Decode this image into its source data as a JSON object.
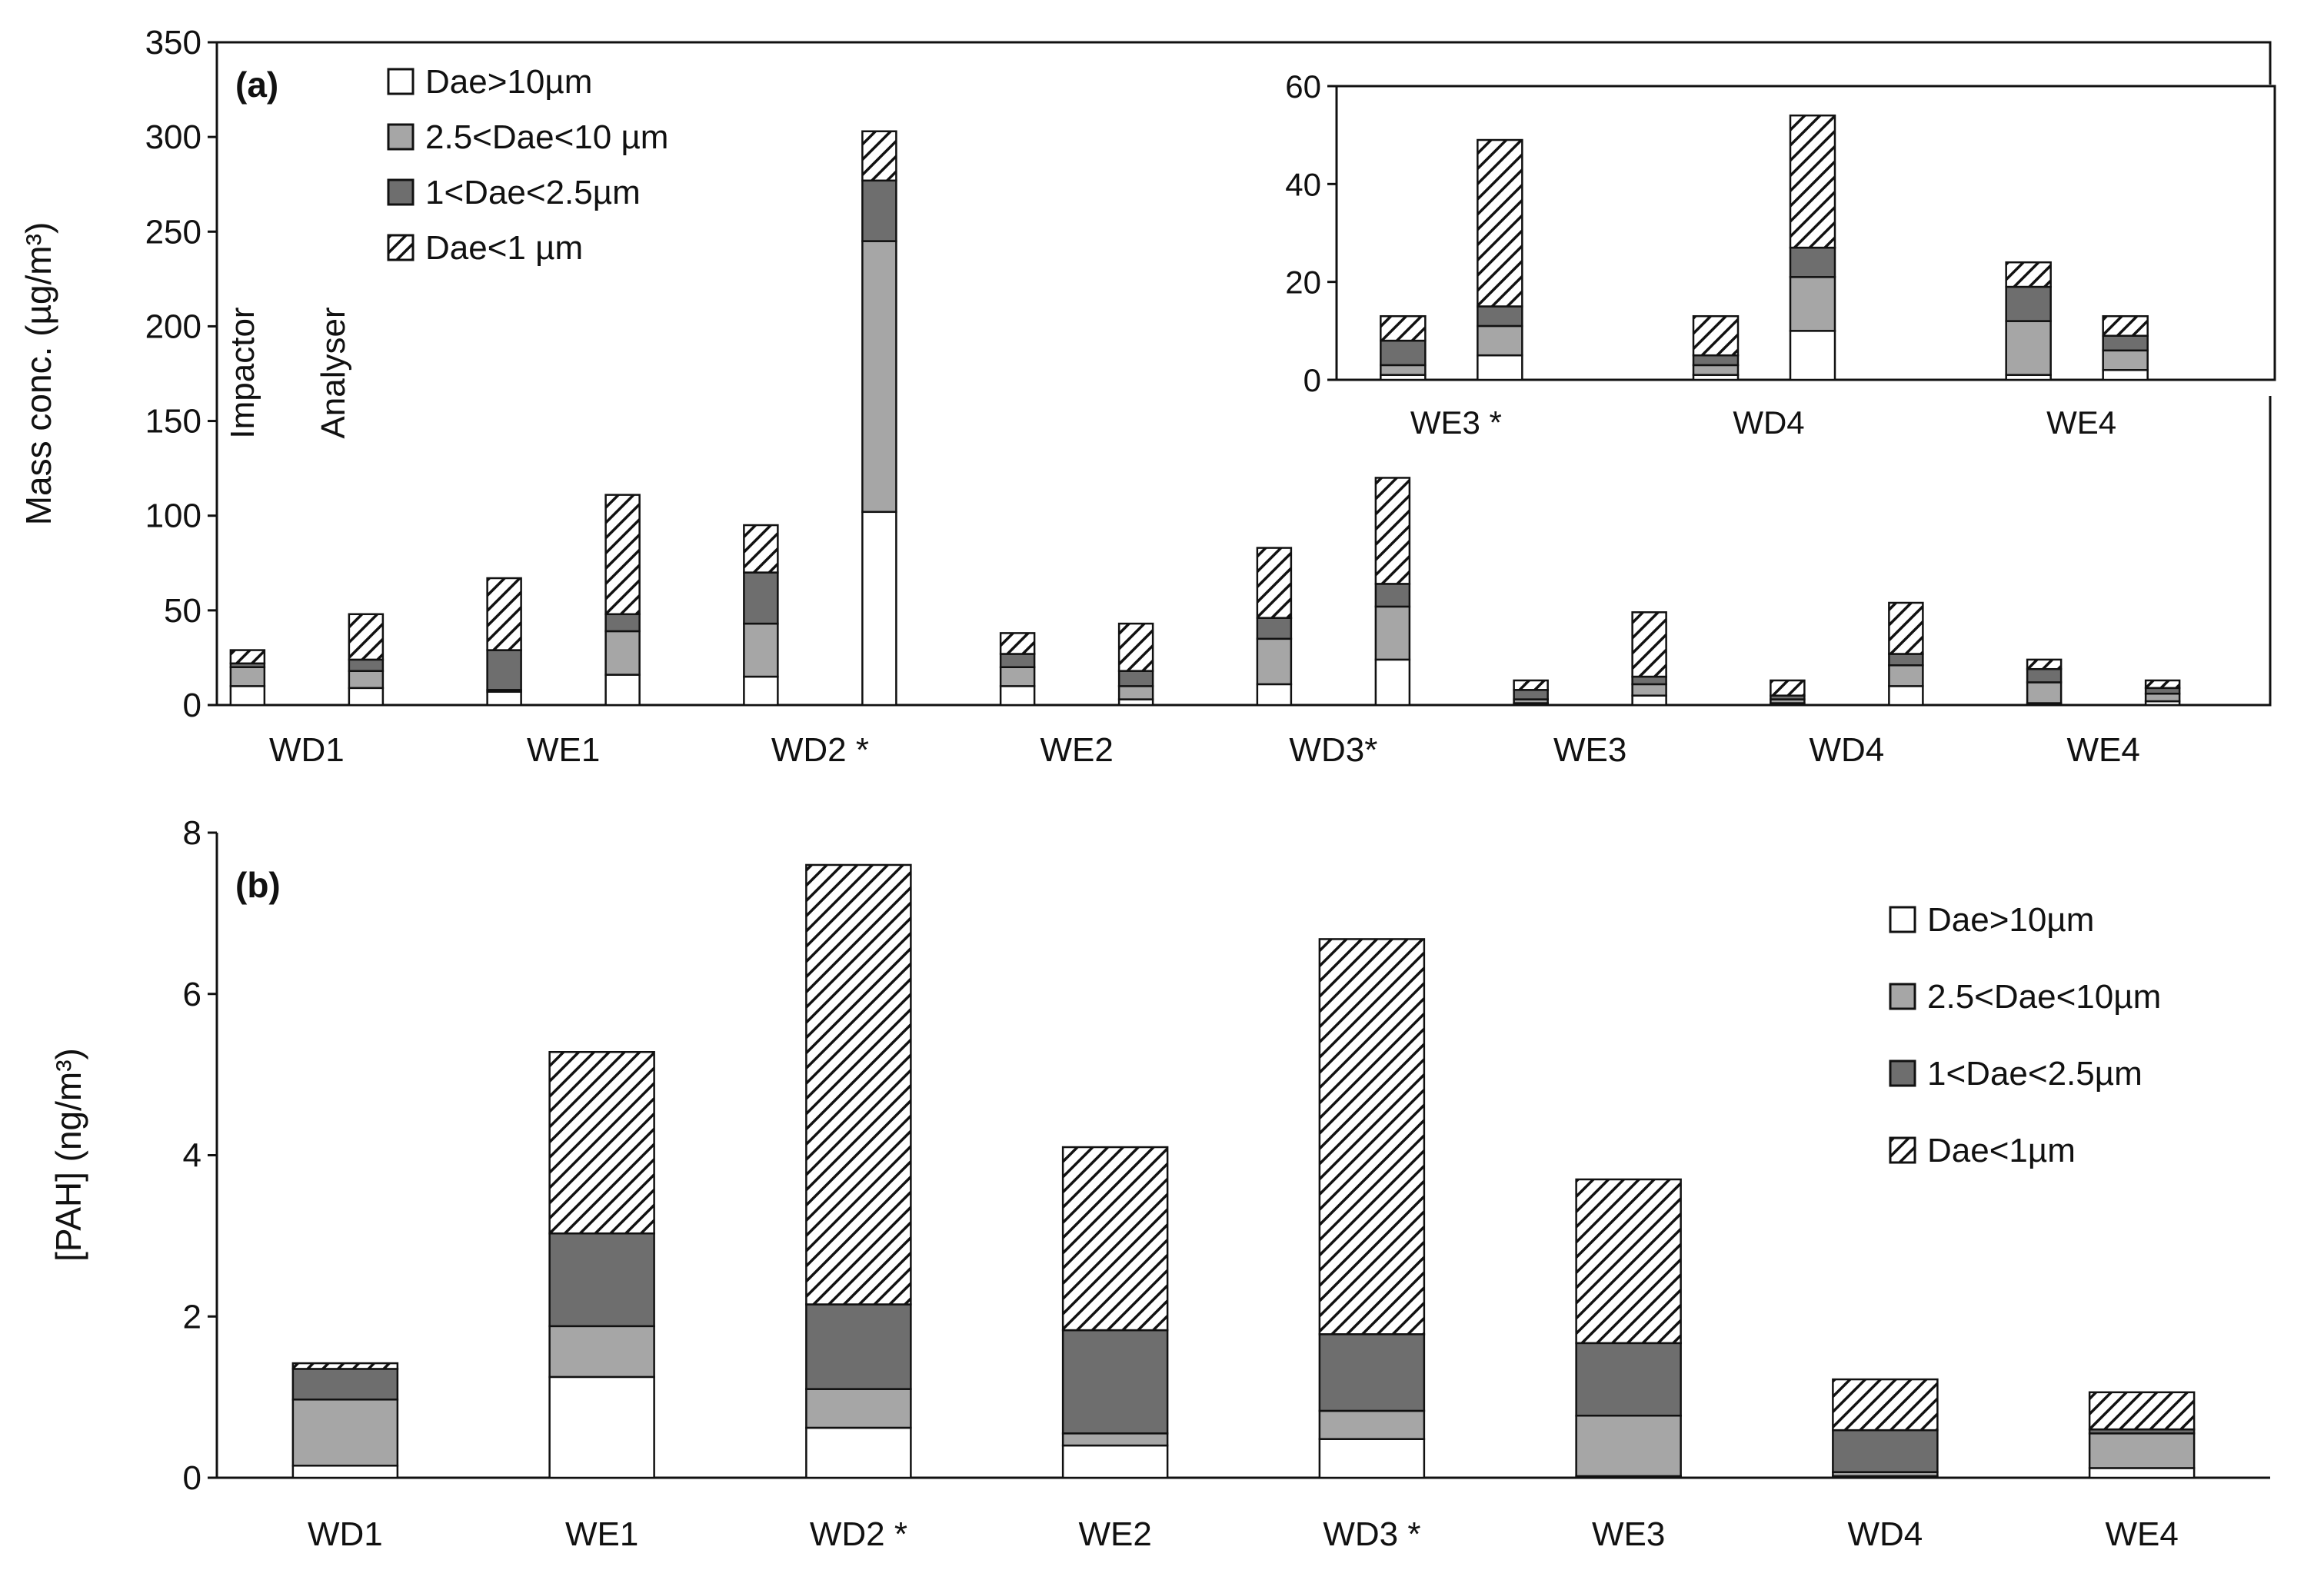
{
  "chart_data": [
    {
      "id": "a",
      "type": "bar",
      "stacked": true,
      "panel_label": "(a)",
      "ylabel": "Mass conc. (µg/m³)",
      "ylim": [
        0,
        350
      ],
      "yticks": [
        "0",
        "50",
        "100",
        "150",
        "200",
        "250",
        "300",
        "350"
      ],
      "categories": [
        "WD1",
        "WE1",
        "WD2 *",
        "WE2",
        "WD3*",
        "WE3",
        "WD4",
        "WE4"
      ],
      "bar_group_labels": [
        "Impactor",
        "Analyser"
      ],
      "series": [
        {
          "name": "Dae>10µm",
          "fill": "white",
          "impactor": [
            10,
            7,
            15,
            10,
            11,
            1,
            1,
            1
          ],
          "analyser": [
            9,
            16,
            102,
            3,
            24,
            5,
            10,
            2
          ]
        },
        {
          "name": "2.5<Dae<10 µm",
          "fill": "#a6a6a6",
          "impactor": [
            10,
            1,
            28,
            10,
            24,
            2,
            2,
            11
          ],
          "analyser": [
            9,
            23,
            143,
            7,
            28,
            6,
            11,
            4
          ]
        },
        {
          "name": "1<Dae<2.5µm",
          "fill": "#6e6e6e",
          "impactor": [
            2,
            21,
            27,
            7,
            11,
            5,
            2,
            7
          ],
          "analyser": [
            6,
            9,
            32,
            8,
            12,
            4,
            6,
            3
          ]
        },
        {
          "name": "Dae<1 µm",
          "fill": "hatch",
          "impactor": [
            7,
            38,
            25,
            11,
            37,
            5,
            8,
            5
          ],
          "analyser": [
            24,
            63,
            26,
            25,
            56,
            34,
            27,
            4
          ]
        }
      ]
    },
    {
      "id": "a-inset",
      "type": "bar",
      "stacked": true,
      "ylim": [
        0,
        60
      ],
      "yticks": [
        "0",
        "20",
        "40",
        "60"
      ],
      "categories": [
        "WE3 *",
        "WD4",
        "WE4"
      ],
      "series": [
        {
          "name": "Dae>10µm",
          "impactor": [
            1,
            1,
            1
          ],
          "analyser": [
            5,
            10,
            2
          ]
        },
        {
          "name": "2.5<Dae<10 µm",
          "impactor": [
            2,
            2,
            11
          ],
          "analyser": [
            6,
            11,
            4
          ]
        },
        {
          "name": "1<Dae<2.5µm",
          "impactor": [
            5,
            2,
            7
          ],
          "analyser": [
            4,
            6,
            3
          ]
        },
        {
          "name": "Dae<1 µm",
          "impactor": [
            5,
            8,
            5
          ],
          "analyser": [
            34,
            27,
            4
          ]
        }
      ]
    },
    {
      "id": "b",
      "type": "bar",
      "stacked": true,
      "panel_label": "(b)",
      "ylabel": "[PAH] (ng/m³)",
      "ylim": [
        0,
        8
      ],
      "yticks": [
        "0",
        "2",
        "4",
        "6",
        "8"
      ],
      "categories": [
        "WD1",
        "WE1",
        "WD2 *",
        "WE2",
        "WD3 *",
        "WE3",
        "WD4",
        "WE4"
      ],
      "series": [
        {
          "name": "Dae>10µm",
          "fill": "white",
          "values": [
            0.15,
            1.25,
            0.62,
            0.4,
            0.48,
            0.02,
            0.02,
            0.12
          ]
        },
        {
          "name": "2.5<Dae<10µm",
          "fill": "#a6a6a6",
          "values": [
            0.82,
            0.63,
            0.48,
            0.15,
            0.35,
            0.75,
            0.05,
            0.43
          ]
        },
        {
          "name": "1<Dae<2.5µm",
          "fill": "#6e6e6e",
          "values": [
            0.38,
            1.15,
            1.05,
            1.28,
            0.95,
            0.9,
            0.52,
            0.05
          ]
        },
        {
          "name": "Dae<1µm",
          "fill": "hatch",
          "values": [
            0.07,
            2.25,
            5.45,
            2.27,
            4.9,
            2.03,
            0.63,
            0.46
          ]
        }
      ]
    }
  ]
}
